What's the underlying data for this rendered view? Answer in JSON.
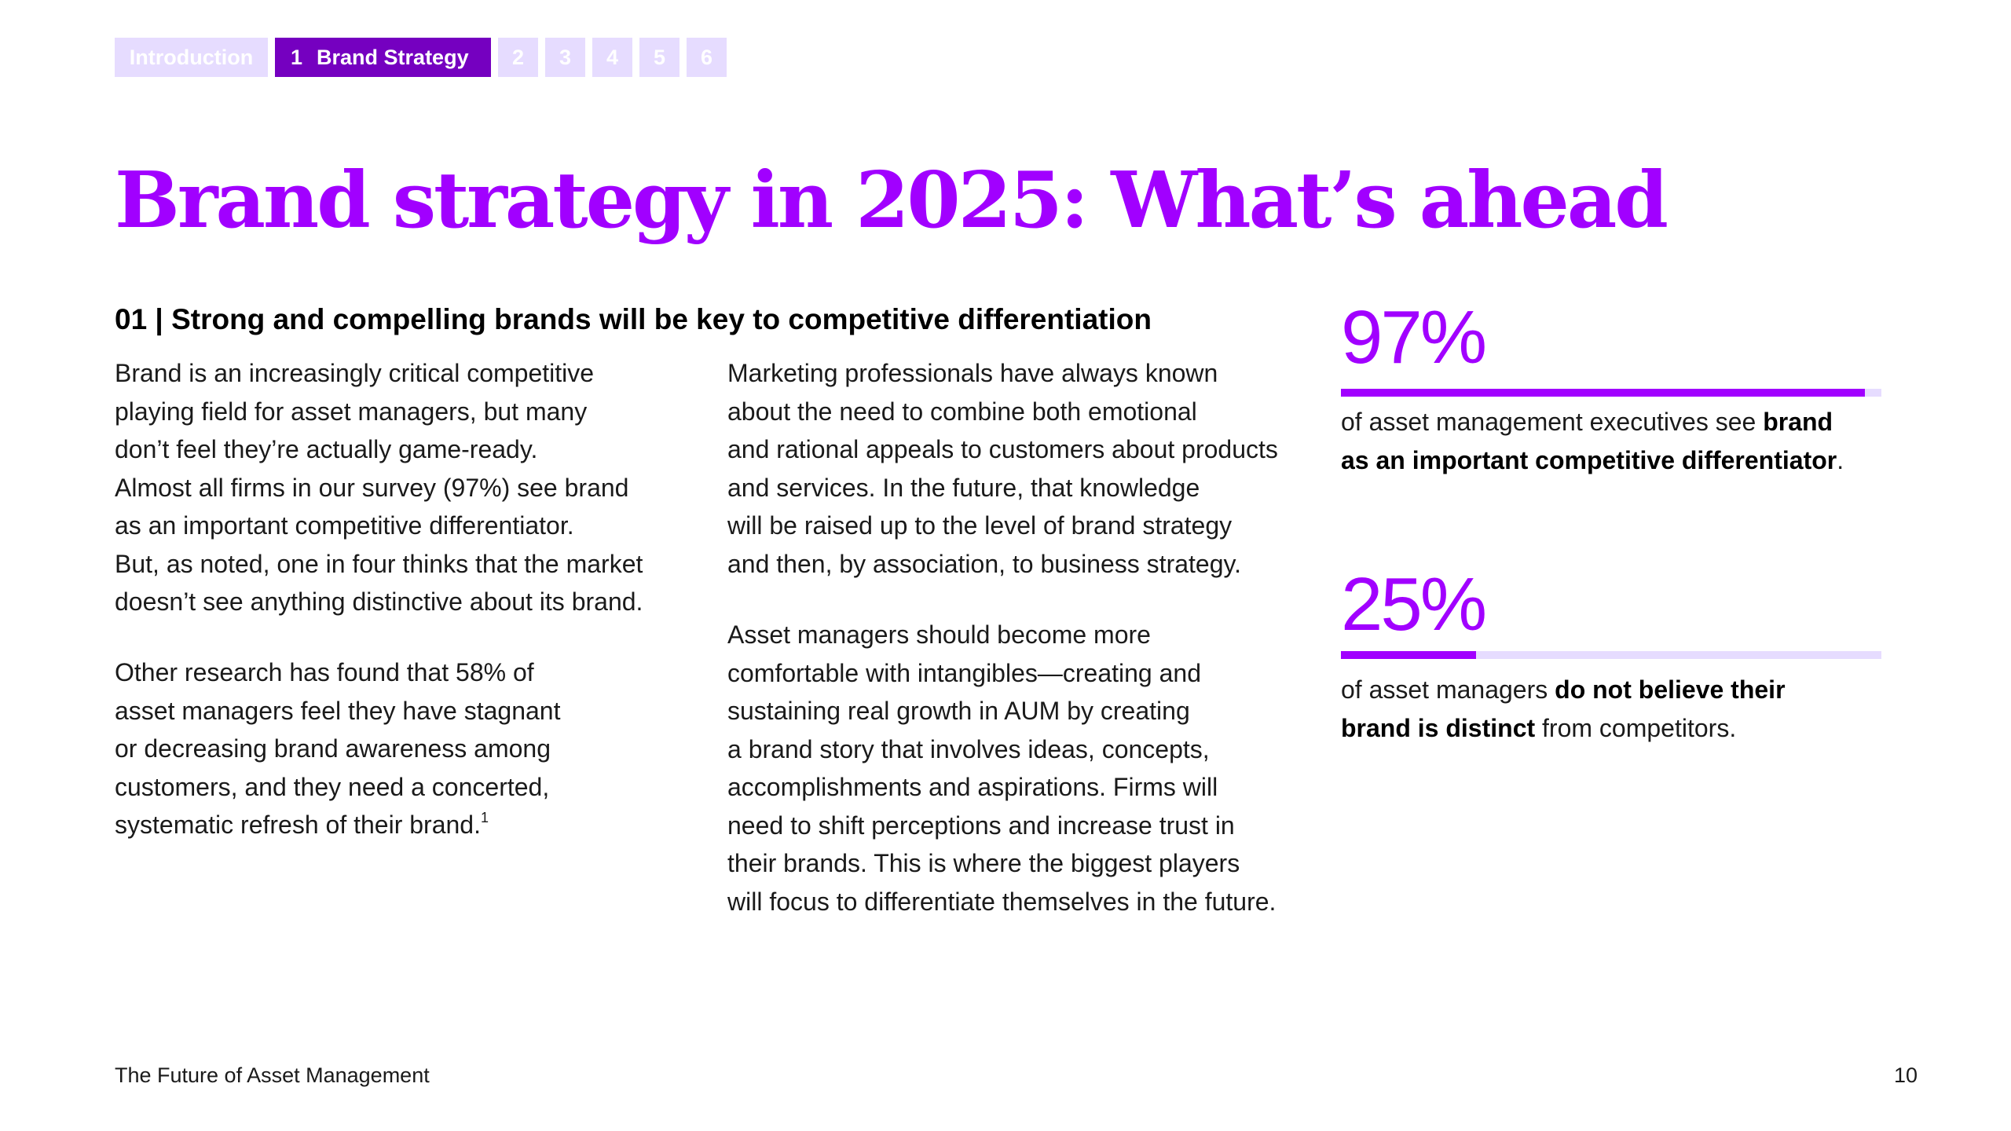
{
  "nav": {
    "intro_label": "Introduction",
    "active_number": "1",
    "active_label": "Brand Strategy",
    "numbers": [
      "2",
      "3",
      "4",
      "5",
      "6"
    ]
  },
  "title": "Brand strategy in 2025: What’s ahead",
  "section": {
    "heading": "01 | Strong and compelling brands will be key to competitive differentiation"
  },
  "col1": {
    "p1": [
      "Brand is an increasingly critical competitive",
      "playing field for asset managers, but many",
      "don’t feel they’re actually game-ready.",
      "Almost all firms in our survey (97%) see brand",
      "as an important competitive differentiator.",
      "But, as noted, one in four thinks that the market",
      "doesn’t see anything distinctive about its brand."
    ],
    "p2": [
      "Other research has found that 58% of",
      "asset managers feel they have stagnant",
      "or decreasing brand awareness among",
      "customers, and they need a concerted,",
      "systematic refresh of their brand."
    ],
    "footnote_marker": "1"
  },
  "col2": {
    "p1": [
      "Marketing professionals have always known",
      "about the need to combine both emotional",
      "and rational appeals to customers about products",
      "and services. In the future, that knowledge",
      "will be raised up to the level of brand strategy",
      "and then, by association, to business strategy."
    ],
    "p2": [
      "Asset managers should become more",
      "comfortable with intangibles—creating and",
      "sustaining real growth in AUM by creating",
      "a brand story that involves ideas, concepts,",
      "accomplishments and aspirations. Firms will",
      "need to shift perceptions and increase trust in",
      "their brands. This is where the biggest players",
      "will focus to differentiate themselves in the future."
    ]
  },
  "stats": [
    {
      "value": "97%",
      "fraction": 0.97,
      "line1_pre": "of asset management executives see ",
      "line1_bold": "brand",
      "line2_bold": "as an important competitive differentiator",
      "line2_post": "."
    },
    {
      "value": "25%",
      "fraction": 0.25,
      "line1_pre": "of asset managers ",
      "line1_bold": "do not believe their",
      "line2_bold": "brand is distinct",
      "line2_post": " from competitors."
    }
  ],
  "footer": {
    "publication": "The Future of Asset Management",
    "page_number": "10"
  },
  "colors": {
    "accent": "#a100ff",
    "active_tab": "#7500c0",
    "inactive_tab": "#e6dcff"
  }
}
